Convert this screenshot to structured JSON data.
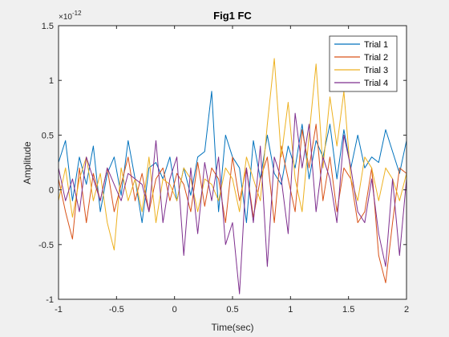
{
  "chart_data": {
    "type": "line",
    "title": "Fig1 FC",
    "xlabel": "Time(sec)",
    "ylabel": "Amplitude",
    "y_exponent_label": "×10",
    "y_exponent_power": "-12",
    "xlim": [
      -1,
      2
    ],
    "ylim": [
      -1,
      1.5
    ],
    "x_ticks": [
      -1,
      -0.5,
      0,
      0.5,
      1,
      1.5,
      2
    ],
    "x_tick_labels": [
      "-1",
      "-0.5",
      "0",
      "0.5",
      "1",
      "1.5",
      "2"
    ],
    "y_ticks": [
      -1,
      -0.5,
      0,
      0.5,
      1,
      1.5
    ],
    "y_tick_labels": [
      "-1",
      "-0.5",
      "0",
      "0.5",
      "1",
      "1.5"
    ],
    "grid": false,
    "legend_position": "top-right",
    "series": [
      {
        "name": "Trial 1",
        "color": "#0072bd",
        "x": [
          -1.0,
          -0.94,
          -0.88,
          -0.82,
          -0.76,
          -0.7,
          -0.64,
          -0.58,
          -0.52,
          -0.46,
          -0.4,
          -0.34,
          -0.28,
          -0.22,
          -0.16,
          -0.1,
          -0.04,
          0.02,
          0.08,
          0.14,
          0.2,
          0.26,
          0.32,
          0.38,
          0.44,
          0.5,
          0.56,
          0.62,
          0.68,
          0.74,
          0.8,
          0.86,
          0.92,
          0.98,
          1.04,
          1.1,
          1.16,
          1.22,
          1.28,
          1.34,
          1.4,
          1.46,
          1.52,
          1.58,
          1.64,
          1.7,
          1.76,
          1.82,
          1.88,
          1.94,
          2.0
        ],
        "values": [
          0.25,
          0.45,
          -0.1,
          0.3,
          0.05,
          0.4,
          -0.2,
          0.15,
          0.3,
          -0.05,
          0.45,
          0.1,
          -0.3,
          0.2,
          0.25,
          0.1,
          0.3,
          -0.1,
          0.2,
          -0.05,
          0.3,
          0.35,
          0.9,
          -0.2,
          0.5,
          0.3,
          0.2,
          -0.3,
          0.45,
          0.1,
          0.5,
          0.15,
          0.05,
          0.4,
          0.2,
          0.6,
          0.1,
          0.45,
          0.3,
          0.6,
          0.1,
          0.55,
          0.2,
          0.5,
          0.2,
          0.3,
          0.25,
          0.55,
          0.35,
          0.15,
          0.45
        ]
      },
      {
        "name": "Trial 2",
        "color": "#d95319",
        "x": [
          -1.0,
          -0.94,
          -0.88,
          -0.82,
          -0.76,
          -0.7,
          -0.64,
          -0.58,
          -0.52,
          -0.46,
          -0.4,
          -0.34,
          -0.28,
          -0.22,
          -0.16,
          -0.1,
          -0.04,
          0.02,
          0.08,
          0.14,
          0.2,
          0.26,
          0.32,
          0.38,
          0.44,
          0.5,
          0.56,
          0.62,
          0.68,
          0.74,
          0.8,
          0.86,
          0.92,
          0.98,
          1.04,
          1.1,
          1.16,
          1.22,
          1.28,
          1.34,
          1.4,
          1.46,
          1.52,
          1.58,
          1.64,
          1.7,
          1.76,
          1.82,
          1.88,
          1.94,
          2.0
        ],
        "values": [
          0.1,
          -0.2,
          -0.45,
          0.2,
          -0.3,
          0.15,
          -0.1,
          0.2,
          -0.2,
          0.05,
          0.3,
          -0.1,
          0.15,
          -0.2,
          0.1,
          0.2,
          -0.1,
          0.15,
          0.05,
          -0.2,
          0.25,
          -0.15,
          0.2,
          0.1,
          -0.3,
          0.3,
          -0.1,
          0.2,
          -0.25,
          0.1,
          0.3,
          -0.3,
          0.4,
          0.1,
          -0.2,
          0.55,
          0.2,
          0.6,
          -0.1,
          0.3,
          -0.2,
          0.2,
          0.1,
          -0.3,
          -0.2,
          0.2,
          -0.6,
          -0.85,
          -0.3,
          0.2,
          0.15
        ]
      },
      {
        "name": "Trial 3",
        "color": "#edb120",
        "x": [
          -1.0,
          -0.94,
          -0.88,
          -0.82,
          -0.76,
          -0.7,
          -0.64,
          -0.58,
          -0.52,
          -0.46,
          -0.4,
          -0.34,
          -0.28,
          -0.22,
          -0.16,
          -0.1,
          -0.04,
          0.02,
          0.08,
          0.14,
          0.2,
          0.26,
          0.32,
          0.38,
          0.44,
          0.5,
          0.56,
          0.62,
          0.68,
          0.74,
          0.8,
          0.86,
          0.92,
          0.98,
          1.04,
          1.1,
          1.16,
          1.22,
          1.28,
          1.34,
          1.4,
          1.46,
          1.52,
          1.58,
          1.64,
          1.7,
          1.76,
          1.82,
          1.88,
          1.94,
          2.0
        ],
        "values": [
          -0.1,
          0.2,
          -0.25,
          0.1,
          0.3,
          -0.1,
          0.15,
          -0.3,
          -0.55,
          0.2,
          -0.1,
          0.1,
          -0.2,
          0.3,
          -0.3,
          0.1,
          0.05,
          -0.1,
          0.2,
          0.1,
          -0.2,
          0.1,
          0.05,
          -0.1,
          0.2,
          0.1,
          -0.2,
          0.3,
          0.1,
          -0.1,
          0.6,
          1.2,
          0.3,
          0.8,
          0.1,
          -0.2,
          0.5,
          1.15,
          0.2,
          0.85,
          0.4,
          0.9,
          0.1,
          -0.1,
          0.3,
          0.2,
          -0.1,
          0.2,
          0.1,
          -0.1,
          0.15
        ]
      },
      {
        "name": "Trial 4",
        "color": "#7e2f8e",
        "x": [
          -1.0,
          -0.94,
          -0.88,
          -0.82,
          -0.76,
          -0.7,
          -0.64,
          -0.58,
          -0.52,
          -0.46,
          -0.4,
          -0.34,
          -0.28,
          -0.22,
          -0.16,
          -0.1,
          -0.04,
          0.02,
          0.08,
          0.14,
          0.2,
          0.26,
          0.32,
          0.38,
          0.44,
          0.5,
          0.56,
          0.62,
          0.68,
          0.74,
          0.8,
          0.86,
          0.92,
          0.98,
          1.04,
          1.1,
          1.16,
          1.22,
          1.28,
          1.34,
          1.4,
          1.46,
          1.52,
          1.58,
          1.64,
          1.7,
          1.76,
          1.82,
          1.88,
          1.94,
          2.0
        ],
        "values": [
          0.2,
          -0.1,
          0.1,
          -0.2,
          0.3,
          0.1,
          -0.1,
          0.2,
          0.05,
          -0.1,
          0.15,
          0.1,
          0.05,
          -0.2,
          0.45,
          -0.3,
          0.1,
          0.3,
          -0.6,
          0.2,
          -0.4,
          0.25,
          -0.1,
          0.3,
          -0.5,
          -0.3,
          -0.95,
          0.2,
          -0.3,
          0.4,
          -0.7,
          0.3,
          0.1,
          -0.4,
          0.7,
          0.2,
          0.6,
          -0.2,
          0.3,
          0.1,
          -0.3,
          0.5,
          0.2,
          -0.2,
          -0.3,
          0.1,
          -0.4,
          -0.7,
          0.1,
          -0.6,
          0.1
        ]
      }
    ]
  }
}
